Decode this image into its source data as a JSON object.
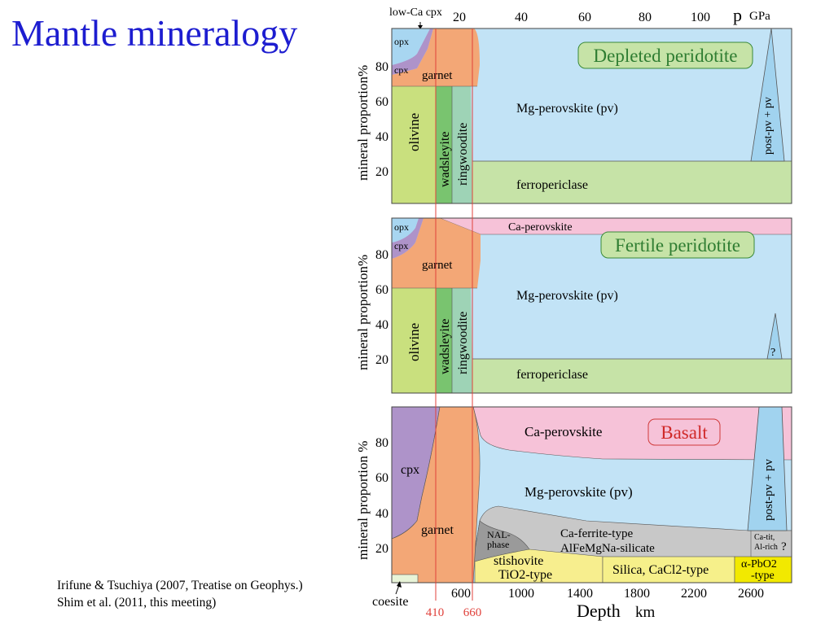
{
  "slide": {
    "title": "Mantle mineralogy",
    "citation_1": "Irifune & Tsuchiya (2007, Treatise on Geophys.)",
    "citation_2": "Shim et al. (2011, this meeting)"
  },
  "colors": {
    "olivine": "#c9e07e",
    "wadsleyite": "#79c46f",
    "ringwoodite": "#9ed3b6",
    "garnet": "#f3a776",
    "opx": "#a8d6f1",
    "cpx": "#ae93c9",
    "mg_perovskite": "#c2e3f6",
    "post_pv": "#a1d3ef",
    "ferropericlase": "#c6e3a7",
    "ca_perovskite": "#f6c2d8",
    "nal_phase": "#9a9a9a",
    "ca_ferrite": "#c8c8c8",
    "stishovite": "#f7ee8e",
    "silica": "#f6f08a",
    "alpha_pbo2": "#f2e900",
    "coesite": "#e8f4d8",
    "boundary_line": "#e0413b",
    "title_blue": "#1d1dd0"
  },
  "chart_data": [
    {
      "type": "area",
      "title": "Depleted peridotite",
      "ylabel": "mineral proportion%",
      "ylim": [
        0,
        100
      ],
      "yticks": [
        "20",
        "40",
        "60",
        "80"
      ],
      "top_axis": {
        "label": "p",
        "unit": "GPa",
        "ticks": [
          "20",
          "40",
          "60",
          "80",
          "100"
        ],
        "note": "low-Ca cpx"
      },
      "phases": [
        {
          "name": "opx",
          "label": "opx",
          "color_key": "opx"
        },
        {
          "name": "cpx",
          "label": "cpx",
          "color_key": "cpx"
        },
        {
          "name": "garnet",
          "label": "garnet",
          "color_key": "garnet"
        },
        {
          "name": "olivine",
          "label": "olivine",
          "color_key": "olivine"
        },
        {
          "name": "wadsleyite",
          "label": "wadsleyite",
          "color_key": "wadsleyite"
        },
        {
          "name": "ringwoodite",
          "label": "ringwoodite",
          "color_key": "ringwoodite"
        },
        {
          "name": "mg-perovskite",
          "label": "Mg-perovskite (pv)",
          "color_key": "mg_perovskite"
        },
        {
          "name": "post-pv",
          "label": "post-pv + pv",
          "color_key": "post_pv"
        },
        {
          "name": "ferropericlase",
          "label": "ferropericlase",
          "color_key": "ferropericlase"
        }
      ]
    },
    {
      "type": "area",
      "title": "Fertile peridotite",
      "ylabel": "mineral proportion%",
      "ylim": [
        0,
        100
      ],
      "yticks": [
        "20",
        "40",
        "60",
        "80"
      ],
      "phases": [
        {
          "name": "opx",
          "label": "opx",
          "color_key": "opx"
        },
        {
          "name": "cpx",
          "label": "cpx",
          "color_key": "cpx"
        },
        {
          "name": "garnet",
          "label": "garnet",
          "color_key": "garnet"
        },
        {
          "name": "ca-perovskite",
          "label": "Ca-perovskite",
          "color_key": "ca_perovskite"
        },
        {
          "name": "olivine",
          "label": "olivine",
          "color_key": "olivine"
        },
        {
          "name": "wadsleyite",
          "label": "wadsleyite",
          "color_key": "wadsleyite"
        },
        {
          "name": "ringwoodite",
          "label": "ringwoodite",
          "color_key": "ringwoodite"
        },
        {
          "name": "mg-perovskite",
          "label": "Mg-perovskite (pv)",
          "color_key": "mg_perovskite"
        },
        {
          "name": "post-pv",
          "label": "?",
          "color_key": "post_pv"
        },
        {
          "name": "ferropericlase",
          "label": "ferropericlase",
          "color_key": "ferropericlase"
        }
      ]
    },
    {
      "type": "area",
      "title": "Basalt",
      "ylabel": "mineral proportion %",
      "ylim": [
        0,
        100
      ],
      "yticks": [
        "20",
        "40",
        "60",
        "80"
      ],
      "bottom_axis": {
        "label": "Depth",
        "unit": "km",
        "ticks": [
          "600",
          "1000",
          "1400",
          "1800",
          "2200",
          "2600"
        ],
        "note": "coesite"
      },
      "phases": [
        {
          "name": "cpx",
          "label": "cpx",
          "color_key": "cpx"
        },
        {
          "name": "garnet",
          "label": "garnet",
          "color_key": "garnet"
        },
        {
          "name": "ca-perovskite",
          "label": "Ca-perovskite",
          "color_key": "ca_perovskite"
        },
        {
          "name": "mg-perovskite",
          "label": "Mg-perovskite (pv)",
          "color_key": "mg_perovskite"
        },
        {
          "name": "post-pv",
          "label": "post-pv + pv",
          "color_key": "post_pv"
        },
        {
          "name": "nal-phase",
          "label_1": "NAL-",
          "label_2": "phase",
          "color_key": "nal_phase"
        },
        {
          "name": "ca-ferrite",
          "label_1": "Ca-ferrite-type",
          "label_2": "AlFeMgNa-silicate",
          "color_key": "ca_ferrite"
        },
        {
          "name": "ca-tit",
          "label_1": "Ca-tit,",
          "label_2": "Al-rich",
          "label_3": "?",
          "color_key": "ca_ferrite"
        },
        {
          "name": "stishovite",
          "label_1": "stishovite",
          "label_2": "TiO2-type",
          "color_key": "stishovite"
        },
        {
          "name": "silica",
          "label": "Silica, CaCl2-type",
          "color_key": "silica"
        },
        {
          "name": "alpha-pbo2",
          "label_1": "α-PbO2",
          "label_2": "-type",
          "color_key": "alpha_pbo2"
        },
        {
          "name": "coesite",
          "label": "",
          "color_key": "coesite"
        }
      ]
    }
  ],
  "boundaries": {
    "d410": "410",
    "d660": "660"
  }
}
